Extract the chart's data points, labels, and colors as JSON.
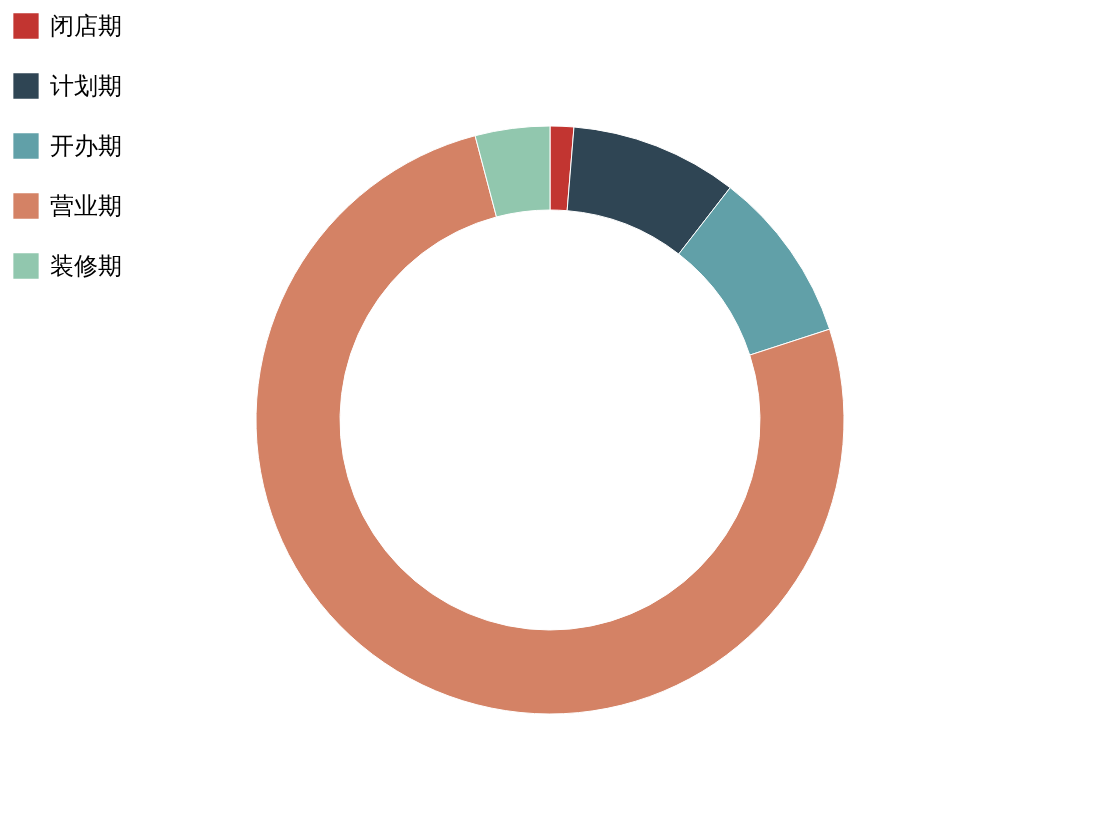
{
  "chart_data": {
    "type": "donut",
    "categories": [
      "闭店期",
      "计划期",
      "开办期",
      "营业期",
      "装修期"
    ],
    "values": [
      1.3,
      9.2,
      9.5,
      75.9,
      4.1
    ],
    "colors": [
      "#c23531",
      "#2f4554",
      "#61a0a8",
      "#d48265",
      "#91c7ae"
    ],
    "legend": "top left"
  }
}
